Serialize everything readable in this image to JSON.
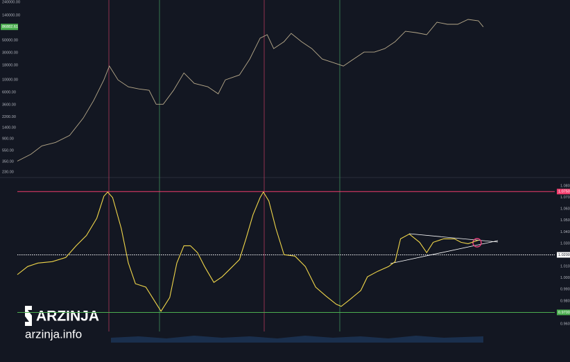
{
  "chart_data": [
    {
      "type": "line",
      "log_scale": true,
      "color": "#b7a98a",
      "grid": false,
      "x": [
        0,
        2.5,
        4.5,
        7,
        9.6,
        12.1,
        14,
        15.9,
        16.9,
        18.5,
        20.4,
        22.3,
        24.2,
        25.5,
        26.8,
        28.7,
        30.6,
        32.5,
        35,
        36.9,
        38.2,
        40.8,
        42.7,
        44.6,
        45.9,
        47.1,
        49,
        50.3,
        52.2,
        54.1,
        56,
        58,
        59.9,
        61.8,
        63.7,
        65.6,
        67.5,
        69.4,
        71.3,
        73.2,
        75.2,
        77.1,
        79,
        80.9,
        82.8,
        84.7,
        85.6
      ],
      "values": [
        357,
        474,
        667,
        769,
        1023,
        2080,
        4236,
        9930,
        17540,
        9930,
        7480,
        6870,
        6490,
        3670,
        3670,
        6490,
        13200,
        8620,
        7480,
        5620,
        9930,
        12130,
        23330,
        54700,
        63100,
        35700,
        47400,
        66700,
        47400,
        35700,
        23330,
        20200,
        17540,
        23330,
        31000,
        31000,
        35700,
        47400,
        72600,
        68700,
        63100,
        105200,
        96600,
        96600,
        117800,
        111400,
        86882.61
      ],
      "last_value": 86882.61,
      "last_color": "#4caf50",
      "xlim": [
        0,
        100
      ],
      "ylim": [
        188,
        261000
      ],
      "yticks": [
        {
          "value": 240000,
          "label": "240000.00"
        },
        {
          "value": 140000,
          "label": "140000.00"
        },
        {
          "value": 50000,
          "label": "50000.00"
        },
        {
          "value": 30000,
          "label": "30000.00"
        },
        {
          "value": 18000,
          "label": "18000.00"
        },
        {
          "value": 10000,
          "label": "10000.00"
        },
        {
          "value": 6000,
          "label": "6000.00"
        },
        {
          "value": 3600,
          "label": "3600.00"
        },
        {
          "value": 2200,
          "label": "2200.00"
        },
        {
          "value": 1400,
          "label": "1400.00"
        },
        {
          "value": 900,
          "label": "900.00"
        },
        {
          "value": 550,
          "label": "550.00"
        },
        {
          "value": 350,
          "label": "350.00"
        },
        {
          "value": 230,
          "label": "230.00"
        }
      ],
      "axis_side": "left"
    },
    {
      "type": "line",
      "log_scale": false,
      "color": "#f0d64a",
      "grid": false,
      "x": [
        0,
        1.9,
        3.8,
        6.4,
        8.9,
        10.8,
        12.7,
        14.6,
        15.9,
        16.6,
        17.5,
        19.1,
        20.4,
        21.7,
        23.6,
        24.8,
        26.4,
        28,
        29.3,
        30.6,
        31.8,
        33.1,
        34.4,
        36.1,
        37.6,
        38.9,
        40.8,
        42,
        43.3,
        44.6,
        45.2,
        46.2,
        47.5,
        49,
        51,
        52.9,
        54.8,
        56.7,
        58.6,
        59.5,
        61.1,
        63.1,
        64.3,
        66.2,
        68.2,
        69.4,
        70.4,
        72,
        73.9,
        75.2,
        76.4,
        78.3,
        80.3,
        81.5,
        82.8,
        84.7
      ],
      "values": [
        1.0028,
        1.0099,
        1.0129,
        1.0141,
        1.0177,
        1.0279,
        1.0369,
        1.0519,
        1.071,
        1.0746,
        1.0698,
        1.0429,
        1.0129,
        0.9949,
        0.992,
        0.983,
        0.971,
        0.983,
        1.0129,
        1.0279,
        1.0279,
        1.0219,
        1.0099,
        0.9961,
        1.0009,
        1.0069,
        1.0159,
        1.0339,
        1.0549,
        1.0698,
        1.0746,
        1.0668,
        1.0429,
        1.0201,
        1.0189,
        1.0099,
        0.992,
        0.9842,
        0.977,
        0.9752,
        0.9812,
        0.989,
        1.0009,
        1.0057,
        1.0099,
        1.0141,
        1.0339,
        1.0381,
        1.0309,
        1.0219,
        1.0309,
        1.0339,
        1.0339,
        1.0309,
        1.0297,
        1.0327
      ],
      "xlim": [
        0,
        100
      ],
      "ylim": [
        0.9534,
        1.086
      ],
      "yticks": [
        {
          "value": 1.08,
          "label": "1.0800"
        },
        {
          "value": 1.07,
          "label": "1.0700"
        },
        {
          "value": 1.06,
          "label": "1.0600"
        },
        {
          "value": 1.05,
          "label": "1.0500"
        },
        {
          "value": 1.04,
          "label": "1.0400"
        },
        {
          "value": 1.03,
          "label": "1.0300"
        },
        {
          "value": 1.01,
          "label": "1.0100"
        },
        {
          "value": 1,
          "label": "1.0000"
        },
        {
          "value": 0.99,
          "label": "0.9900"
        },
        {
          "value": 0.98,
          "label": "0.9800"
        },
        {
          "value": 0.96,
          "label": "0.9600"
        }
      ],
      "hlines": [
        {
          "value": 1.075,
          "label": "1.0750",
          "color": "#f23d6d"
        },
        {
          "value": 1.02,
          "label": "1.0200",
          "color": "#ffffff"
        },
        {
          "value": 0.97,
          "label": "0.9700",
          "color": "#4caf50"
        }
      ],
      "axis_side": "right"
    }
  ],
  "watermark": {
    "brand": "ARZINJA",
    "site": "arzinja.info"
  }
}
